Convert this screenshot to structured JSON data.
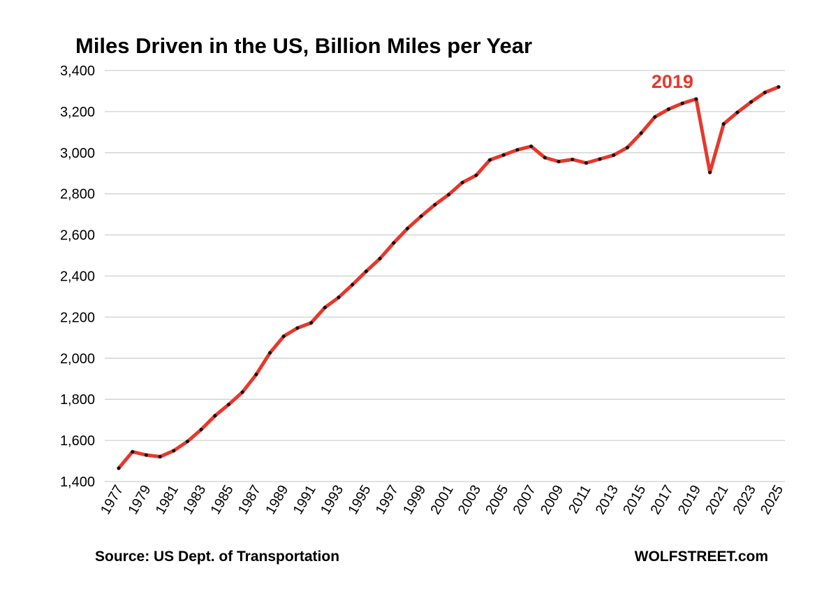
{
  "chart_data": {
    "type": "line",
    "title": "Miles Driven in the US, Billion Miles per Year",
    "xlabel": "",
    "ylabel": "",
    "ylim": [
      1400,
      3400
    ],
    "yticks": [
      1400,
      1600,
      1800,
      2000,
      2200,
      2400,
      2600,
      2800,
      3000,
      3200,
      3400
    ],
    "ytick_labels": [
      "1,400",
      "1,600",
      "1,800",
      "2,000",
      "2,200",
      "2,400",
      "2,600",
      "2,800",
      "3,000",
      "3,200",
      "3,400"
    ],
    "xtick_labels": [
      "1977",
      "1979",
      "1981",
      "1983",
      "1985",
      "1987",
      "1989",
      "1991",
      "1993",
      "1995",
      "1997",
      "1999",
      "2001",
      "2003",
      "2005",
      "2007",
      "2009",
      "2011",
      "2013",
      "2015",
      "2017",
      "2019",
      "2021",
      "2023",
      "2025"
    ],
    "grid": true,
    "series": [
      {
        "name": "Miles Driven",
        "color": "#e8372b",
        "marker_color": "#111111",
        "x": [
          1977,
          1978,
          1979,
          1980,
          1981,
          1982,
          1983,
          1984,
          1985,
          1986,
          1987,
          1988,
          1989,
          1990,
          1991,
          1992,
          1993,
          1994,
          1995,
          1996,
          1997,
          1998,
          1999,
          2000,
          2001,
          2002,
          2003,
          2004,
          2005,
          2006,
          2007,
          2008,
          2009,
          2010,
          2011,
          2012,
          2013,
          2014,
          2015,
          2016,
          2017,
          2018,
          2019,
          2020,
          2021,
          2022,
          2023,
          2024,
          2025
        ],
        "values": [
          1465,
          1545,
          1529,
          1521,
          1550,
          1595,
          1653,
          1720,
          1775,
          1835,
          1921,
          2026,
          2107,
          2147,
          2172,
          2247,
          2296,
          2358,
          2423,
          2485,
          2561,
          2631,
          2691,
          2747,
          2796,
          2855,
          2890,
          2965,
          2989,
          3014,
          3031,
          2976,
          2957,
          2967,
          2950,
          2969,
          2988,
          3025,
          3095,
          3174,
          3212,
          3240,
          3261,
          2904,
          3140,
          3196,
          3247,
          3293,
          3320
        ]
      }
    ],
    "annotations": [
      {
        "text": "2019",
        "x": 2019,
        "y": 3261,
        "color": "#e8372b"
      }
    ]
  },
  "footer": {
    "source": "Source: US Dept. of Transportation",
    "brand": "WOLFSTREET.com"
  }
}
